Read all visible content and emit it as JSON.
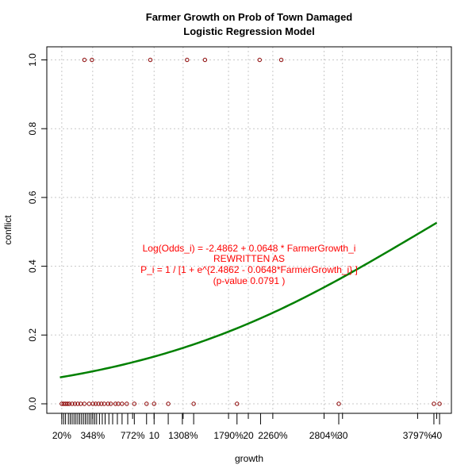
{
  "chart_data": {
    "type": "scatter",
    "title": "Farmer Growth on Prob of Town Damaged",
    "subtitle": "Logistic Regression Model",
    "xlabel": "growth",
    "ylabel": "conflict",
    "xlim": [
      0,
      40
    ],
    "ylim": [
      0,
      1
    ],
    "grid": true,
    "y_ticks": [
      "0.0",
      "0.2",
      "0.4",
      "0.6",
      "0.8",
      "1.0"
    ],
    "x_ticks": [
      {
        "x": 0.2,
        "label": "20%"
      },
      {
        "x": 3.48,
        "label": "348%"
      },
      {
        "x": 7.72,
        "label": "772%"
      },
      {
        "x": 10,
        "label": "10"
      },
      {
        "x": 13.08,
        "label": "1308%"
      },
      {
        "x": 17.9,
        "label": "1790%"
      },
      {
        "x": 20,
        "label": "20"
      },
      {
        "x": 22.6,
        "label": "2260%"
      },
      {
        "x": 28.04,
        "label": "2804%"
      },
      {
        "x": 30,
        "label": "30"
      },
      {
        "x": 37.97,
        "label": "3797%"
      },
      {
        "x": 40,
        "label": "40"
      }
    ],
    "points_y1": [
      2.6,
      3.4,
      9.6,
      13.5,
      15.4,
      21.2,
      23.5
    ],
    "points_y0": [
      0.2,
      0.4,
      0.6,
      0.8,
      1.0,
      1.3,
      1.6,
      1.9,
      2.2,
      2.6,
      3.1,
      3.5,
      3.8,
      4.1,
      4.4,
      4.7,
      5.1,
      5.4,
      5.9,
      6.2,
      6.6,
      7.1,
      7.9,
      9.2,
      10.0,
      11.5,
      14.2,
      18.8,
      29.6,
      39.7,
      40.3
    ],
    "rug": [
      0.2,
      0.4,
      0.6,
      0.9,
      1.1,
      1.3,
      1.5,
      1.7,
      1.9,
      2.1,
      2.3,
      2.5,
      2.7,
      2.9,
      3.1,
      3.3,
      3.5,
      3.7,
      3.9,
      4.2,
      4.5,
      4.8,
      5.2,
      5.6,
      6.1,
      6.6,
      7.2,
      7.9,
      9.2,
      10.0,
      11.5,
      13.0,
      14.2,
      18.8,
      21.3,
      29.6,
      39.7,
      40.3
    ],
    "curve": {
      "intercept": -2.4862,
      "slope": 0.0648,
      "color": "#008000"
    },
    "point_color": "#8b0000",
    "annotation": {
      "color": "#ff0000",
      "lines": [
        "Log(Odds_i) = -2.4862 + 0.0648 * FarmerGrowth_i",
        "REWRITTEN AS",
        "P_i = 1 / [1 + e^{2.4862 - 0.0648*FarmerGrowth_i} ]",
        "(p-value 0.0791 )"
      ]
    }
  }
}
